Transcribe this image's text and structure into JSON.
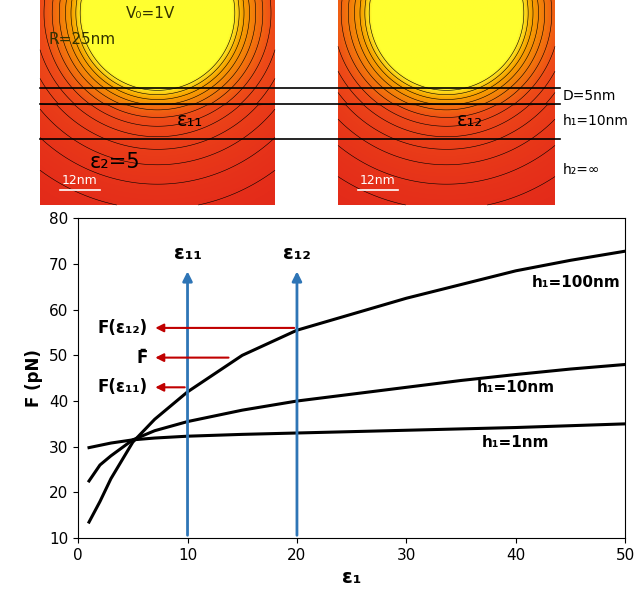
{
  "chart_data": {
    "type": "line",
    "x_label": "ε₁",
    "y_label": "F (pN)",
    "x": [
      1,
      2,
      3,
      5,
      7,
      10,
      15,
      20,
      25,
      30,
      35,
      40,
      45,
      50
    ],
    "series": [
      {
        "name": "h₁=100nm",
        "color": "#000000",
        "values": [
          13.5,
          18,
          23,
          31,
          36,
          42,
          50,
          55.5,
          59,
          62.5,
          65.5,
          68.5,
          70.8,
          72.8
        ]
      },
      {
        "name": "h₁=10nm",
        "color": "#000000",
        "values": [
          22.5,
          26,
          28,
          31.5,
          33.5,
          35.5,
          38,
          40,
          41.5,
          43,
          44.5,
          45.8,
          47,
          48
        ]
      },
      {
        "name": "h₁=1nm",
        "color": "#000000",
        "values": [
          29.8,
          30.3,
          30.8,
          31.5,
          31.9,
          32.3,
          32.7,
          33,
          33.3,
          33.6,
          33.9,
          34.2,
          34.6,
          35
        ]
      }
    ],
    "markers": [
      {
        "label": "ε₁₁",
        "x": 10,
        "y": 69
      },
      {
        "label": "ε₁₂",
        "x": 20,
        "y": 69
      }
    ],
    "levels": [
      {
        "label": "F(ε₁₂)",
        "x": 20,
        "y": 56
      },
      {
        "label": "F̄",
        "x": 14,
        "y": 49.5
      },
      {
        "label": "F(ε₁₁)",
        "x": 10,
        "y": 43
      }
    ],
    "xlim": [
      0,
      50
    ],
    "xticks": [
      0,
      10,
      20,
      30,
      40,
      50
    ],
    "ylim": [
      10,
      80
    ],
    "yticks": [
      10,
      20,
      30,
      40,
      50,
      60,
      70,
      80
    ],
    "grid": false
  },
  "simulation": {
    "panels": [
      {
        "texts": [
          "V₀=1V",
          "R=25nm",
          "ε₁₁",
          "ε₂=5"
        ],
        "scale_bar": "12nm"
      },
      {
        "texts": [
          "ε₁₂"
        ],
        "scale_bar": "12nm"
      }
    ],
    "dimensions": [
      "D=5nm",
      "h₁=10nm",
      "h₂=∞"
    ]
  }
}
